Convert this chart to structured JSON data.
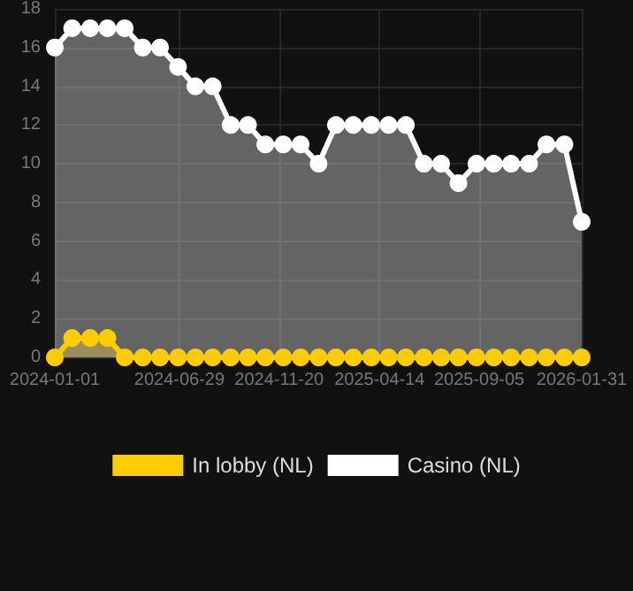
{
  "chart_data": {
    "type": "area",
    "x": [
      "2024-01-01",
      "2024-01-26",
      "2024-02-21",
      "2024-03-17",
      "2024-04-11",
      "2024-05-07",
      "2024-06-01",
      "2024-06-27",
      "2024-07-22",
      "2024-08-16",
      "2024-09-11",
      "2024-10-06",
      "2024-10-31",
      "2024-11-26",
      "2024-12-21",
      "2025-01-16",
      "2025-02-10",
      "2025-03-07",
      "2025-04-02",
      "2025-04-27",
      "2025-05-22",
      "2025-06-17",
      "2025-07-12",
      "2025-08-06",
      "2025-09-01",
      "2025-09-26",
      "2025-10-21",
      "2025-11-16",
      "2025-12-11",
      "2026-01-06",
      "2026-01-31"
    ],
    "series": [
      {
        "name": "In lobby (NL)",
        "color": "#ffcc00",
        "values": [
          0,
          1,
          1,
          1,
          0,
          0,
          0,
          0,
          0,
          0,
          0,
          0,
          0,
          0,
          0,
          0,
          0,
          0,
          0,
          0,
          0,
          0,
          0,
          0,
          0,
          0,
          0,
          0,
          0,
          0,
          0
        ]
      },
      {
        "name": "Casino (NL)",
        "color": "#ffffff",
        "values": [
          16,
          17,
          17,
          17,
          17,
          16,
          16,
          15,
          14,
          14,
          12,
          12,
          11,
          11,
          11,
          10,
          12,
          12,
          12,
          12,
          12,
          10,
          10,
          9,
          10,
          10,
          10,
          10,
          11,
          11,
          7
        ]
      }
    ],
    "xlim": [
      "2024-01-01",
      "2026-01-31"
    ],
    "xticks": [
      "2024-01-01",
      "2024-06-29",
      "2024-11-20",
      "2025-04-14",
      "2025-09-05",
      "2026-01-31"
    ],
    "ylim": [
      0,
      18
    ],
    "yticks": [
      0,
      2,
      4,
      6,
      8,
      10,
      12,
      14,
      16,
      18
    ],
    "grid": true,
    "legend": "bottom",
    "marker": "circle"
  }
}
